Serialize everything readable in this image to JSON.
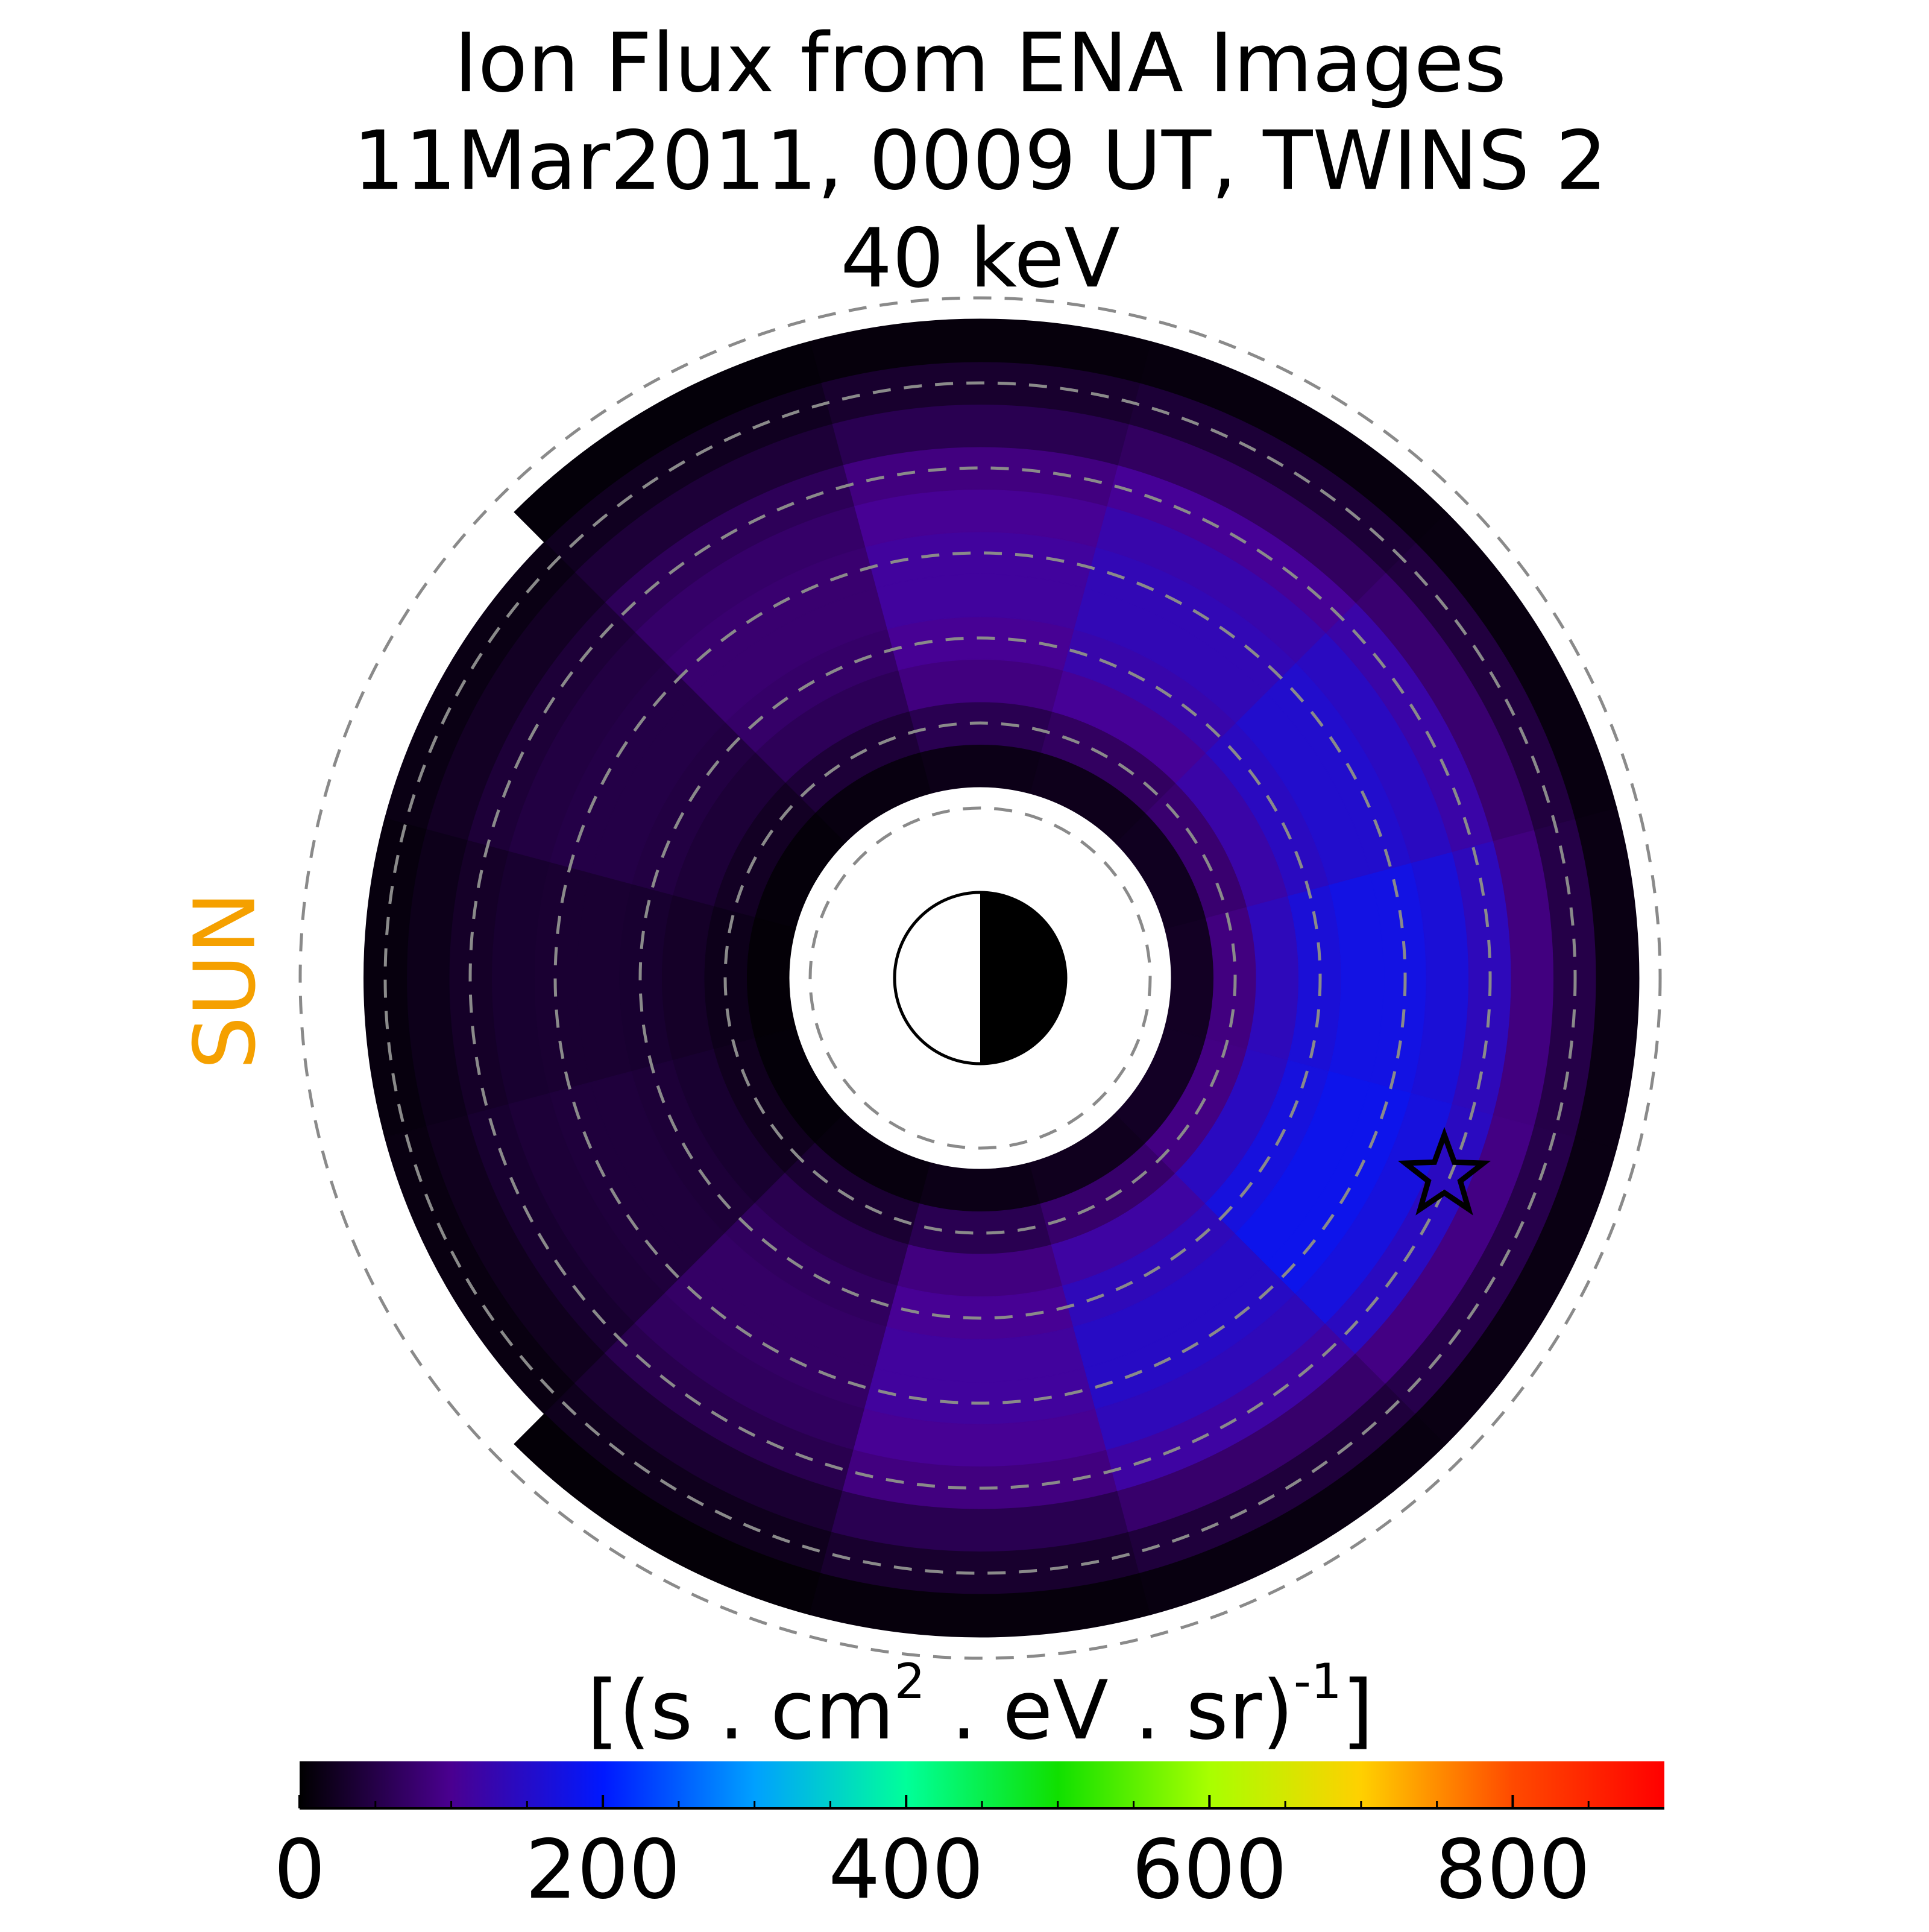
{
  "chart_data": {
    "type": "polar-heatmap",
    "title": [
      "Ion Flux from  ENA Images",
      "11Mar2011, 0009 UT,  TWINS 2",
      "40 keV"
    ],
    "sun_label": "SUN",
    "sun_color": "#f5a000",
    "r": [
      2.5,
      3,
      3.5,
      4,
      4.5,
      5,
      5.5,
      6,
      6.5,
      7,
      7.5
    ],
    "mlt": [
      0,
      2,
      4,
      6,
      8,
      10,
      12,
      14,
      16,
      18,
      20,
      22
    ],
    "values": [
      [
        25,
        22,
        19,
        16,
        11,
        7,
        5,
        6,
        10,
        16,
        21,
        26
      ],
      [
        88,
        77,
        67,
        56,
        39,
        25,
        18,
        21,
        35,
        56,
        74,
        91
      ],
      [
        138,
        121,
        105,
        88,
        61,
        39,
        28,
        33,
        55,
        88,
        116,
        143
      ],
      [
        163,
        143,
        124,
        104,
        72,
        46,
        33,
        39,
        65,
        104,
        137,
        169
      ],
      [
        175,
        154,
        133,
        112,
        77,
        49,
        35,
        42,
        70,
        112,
        147,
        182
      ],
      [
        175,
        154,
        133,
        112,
        77,
        49,
        35,
        42,
        70,
        112,
        147,
        182
      ],
      [
        163,
        143,
        124,
        104,
        72,
        46,
        33,
        39,
        65,
        104,
        137,
        169
      ],
      [
        138,
        121,
        105,
        88,
        61,
        39,
        28,
        33,
        55,
        88,
        116,
        143
      ],
      [
        88,
        77,
        67,
        56,
        39,
        25,
        18,
        21,
        35,
        56,
        74,
        91
      ],
      [
        50,
        44,
        38,
        32,
        22,
        14,
        10,
        12,
        20,
        32,
        42,
        52
      ],
      [
        13,
        11,
        10,
        8,
        6,
        null,
        null,
        null,
        5,
        8,
        11,
        13
      ]
    ],
    "colormap": [
      "#000000",
      "#4a0090",
      "#0018ff",
      "#00a0ff",
      "#00ff9a",
      "#10e000",
      "#a8ff00",
      "#ffd000",
      "#ff4a00",
      "#ff0000"
    ],
    "colorbar_label": [
      "[(s . cm",
      "2",
      "  . eV . sr)",
      "-1",
      "]"
    ],
    "xlim": [
      0,
      900
    ],
    "xticks": [
      0,
      200,
      400,
      600,
      800
    ],
    "minor_xticks": [
      50,
      100,
      150,
      250,
      300,
      350,
      450,
      500,
      550,
      650,
      700,
      750,
      850
    ]
  }
}
